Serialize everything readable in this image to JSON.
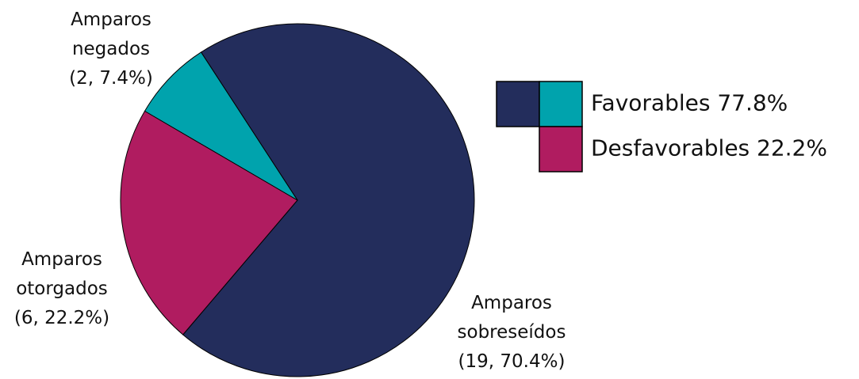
{
  "chart_data": {
    "type": "pie",
    "categories": [
      "Amparos sobreseídos",
      "Amparos otorgados",
      "Amparos negados"
    ],
    "values": [
      19,
      6,
      2
    ],
    "value_labels": [
      "(19, 70.4%)",
      "(6, 22.2%)",
      "(2, 7.4%)"
    ],
    "colors": [
      "#232d5c",
      "#b01c60",
      "#00a3ad"
    ],
    "legend": [
      {
        "label": "Favorables 77.8%",
        "colors": [
          "#232d5c",
          "#00a3ad"
        ]
      },
      {
        "label": "Desfavorables 22.2%",
        "colors": [
          "#b01c60"
        ]
      }
    ]
  }
}
